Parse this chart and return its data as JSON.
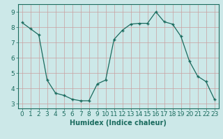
{
  "x": [
    0,
    1,
    2,
    3,
    4,
    5,
    6,
    7,
    8,
    9,
    10,
    11,
    12,
    13,
    14,
    15,
    16,
    17,
    18,
    19,
    20,
    21,
    22,
    23
  ],
  "y": [
    8.3,
    7.9,
    7.5,
    4.55,
    3.7,
    3.55,
    3.3,
    3.2,
    3.2,
    4.3,
    4.55,
    7.2,
    7.8,
    8.2,
    8.25,
    8.25,
    9.0,
    8.35,
    8.2,
    7.4,
    5.8,
    4.8,
    4.45,
    3.3
  ],
  "line_color": "#1a6b5e",
  "marker": "+",
  "marker_size": 3,
  "marker_lw": 1.0,
  "bg_color": "#cce8e8",
  "grid_color": "#b0d0d0",
  "xlabel": "Humidex (Indice chaleur)",
  "xlim": [
    -0.5,
    23.5
  ],
  "ylim": [
    2.7,
    9.5
  ],
  "xticks": [
    0,
    1,
    2,
    3,
    4,
    5,
    6,
    7,
    8,
    9,
    10,
    11,
    12,
    13,
    14,
    15,
    16,
    17,
    18,
    19,
    20,
    21,
    22,
    23
  ],
  "yticks": [
    3,
    4,
    5,
    6,
    7,
    8,
    9
  ],
  "xlabel_fontsize": 7,
  "tick_fontsize": 6.5,
  "line_width": 0.9
}
